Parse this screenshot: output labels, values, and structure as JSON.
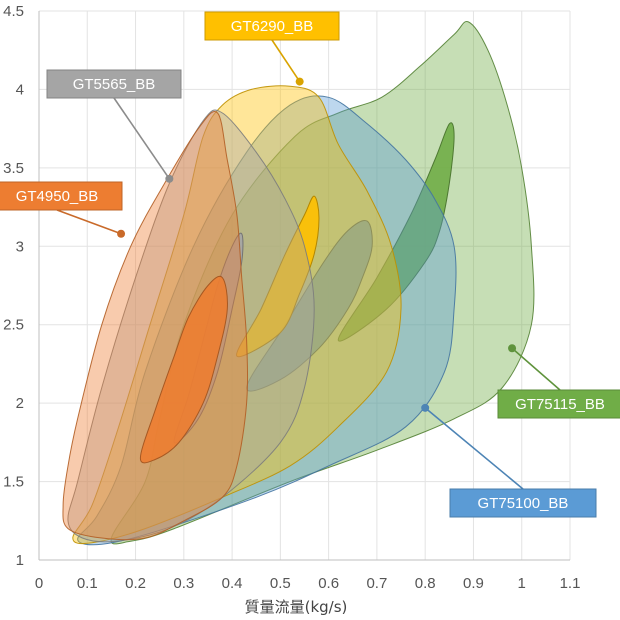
{
  "chart_data": {
    "type": "area",
    "xlabel": "質量流量(kg/s)",
    "ylabel": "",
    "xlim": [
      0,
      1.1
    ],
    "ylim": [
      1,
      4.5
    ],
    "x_ticks": [
      0,
      0.1,
      0.2,
      0.3,
      0.4,
      0.5,
      0.6,
      0.7,
      0.8,
      0.9,
      1,
      1.1
    ],
    "y_ticks": [
      1,
      1.5,
      2,
      2.5,
      3,
      3.5,
      4,
      4.5
    ],
    "x_tick_labels": [
      "0",
      "0.1",
      "0.2",
      "0.3",
      "0.4",
      "0.5",
      "0.6",
      "0.7",
      "0.8",
      "0.9",
      "1",
      "1.1"
    ],
    "y_tick_labels": [
      "1",
      "1.5",
      "2",
      "2.5",
      "3",
      "3.5",
      "4",
      "4.5"
    ],
    "grid": true,
    "series": [
      {
        "name": "GT75115_BB",
        "color": "#70ad47",
        "outer": [
          [
            0.15,
            1.14
          ],
          [
            0.19,
            1.12
          ],
          [
            0.28,
            1.2
          ],
          [
            0.52,
            1.5
          ],
          [
            0.7,
            1.7
          ],
          [
            0.86,
            1.9
          ],
          [
            0.96,
            2.1
          ],
          [
            1.02,
            2.5
          ],
          [
            1.02,
            3.0
          ],
          [
            1.0,
            3.5
          ],
          [
            0.97,
            3.9
          ],
          [
            0.93,
            4.25
          ],
          [
            0.89,
            4.43
          ],
          [
            0.86,
            4.35
          ],
          [
            0.79,
            4.15
          ],
          [
            0.71,
            3.95
          ],
          [
            0.62,
            3.85
          ],
          [
            0.53,
            3.7
          ],
          [
            0.4,
            3.2
          ],
          [
            0.3,
            2.5
          ],
          [
            0.25,
            1.9
          ],
          [
            0.22,
            1.5
          ]
        ],
        "core": [
          [
            0.62,
            2.4
          ],
          [
            0.7,
            2.8
          ],
          [
            0.77,
            3.2
          ],
          [
            0.82,
            3.55
          ],
          [
            0.85,
            3.78
          ],
          [
            0.86,
            3.7
          ],
          [
            0.85,
            3.4
          ],
          [
            0.83,
            3.1
          ],
          [
            0.8,
            2.9
          ],
          [
            0.72,
            2.6
          ]
        ],
        "label_point": [
          0.98,
          2.35
        ]
      },
      {
        "name": "GT75100_BB",
        "color": "#5b9bd5",
        "outer": [
          [
            0.08,
            1.13
          ],
          [
            0.13,
            1.1
          ],
          [
            0.24,
            1.18
          ],
          [
            0.45,
            1.4
          ],
          [
            0.6,
            1.6
          ],
          [
            0.76,
            1.85
          ],
          [
            0.84,
            2.2
          ],
          [
            0.86,
            2.6
          ],
          [
            0.86,
            3.0
          ],
          [
            0.82,
            3.3
          ],
          [
            0.76,
            3.55
          ],
          [
            0.68,
            3.78
          ],
          [
            0.6,
            3.95
          ],
          [
            0.52,
            3.9
          ],
          [
            0.43,
            3.6
          ],
          [
            0.32,
            3.0
          ],
          [
            0.22,
            2.2
          ],
          [
            0.17,
            1.6
          ],
          [
            0.12,
            1.28
          ]
        ],
        "core": [
          [
            0.43,
            2.1
          ],
          [
            0.51,
            2.5
          ],
          [
            0.59,
            2.9
          ],
          [
            0.64,
            3.1
          ],
          [
            0.68,
            3.16
          ],
          [
            0.69,
            3.0
          ],
          [
            0.67,
            2.8
          ],
          [
            0.64,
            2.6
          ],
          [
            0.58,
            2.35
          ],
          [
            0.5,
            2.15
          ]
        ],
        "label_point": [
          0.8,
          1.97
        ]
      },
      {
        "name": "GT6290_BB",
        "color": "#ffc000",
        "outer": [
          [
            0.07,
            1.14
          ],
          [
            0.11,
            1.11
          ],
          [
            0.22,
            1.2
          ],
          [
            0.38,
            1.4
          ],
          [
            0.52,
            1.6
          ],
          [
            0.62,
            1.85
          ],
          [
            0.72,
            2.2
          ],
          [
            0.75,
            2.6
          ],
          [
            0.73,
            3.0
          ],
          [
            0.68,
            3.35
          ],
          [
            0.62,
            3.65
          ],
          [
            0.58,
            3.95
          ],
          [
            0.52,
            4.02
          ],
          [
            0.44,
            4.0
          ],
          [
            0.38,
            3.9
          ],
          [
            0.34,
            3.7
          ],
          [
            0.3,
            3.2
          ],
          [
            0.23,
            2.5
          ],
          [
            0.16,
            1.8
          ],
          [
            0.11,
            1.35
          ]
        ],
        "core": [
          [
            0.41,
            2.3
          ],
          [
            0.46,
            2.6
          ],
          [
            0.51,
            2.95
          ],
          [
            0.55,
            3.2
          ],
          [
            0.57,
            3.32
          ],
          [
            0.58,
            3.18
          ],
          [
            0.57,
            2.95
          ],
          [
            0.54,
            2.7
          ],
          [
            0.5,
            2.45
          ]
        ],
        "label_point": [
          0.54,
          4.05
        ]
      },
      {
        "name": "GT5565_BB",
        "color": "#a5a5a5",
        "outer": [
          [
            0.06,
            1.25
          ],
          [
            0.09,
            1.14
          ],
          [
            0.16,
            1.12
          ],
          [
            0.27,
            1.2
          ],
          [
            0.38,
            1.4
          ],
          [
            0.5,
            1.75
          ],
          [
            0.55,
            2.1
          ],
          [
            0.57,
            2.6
          ],
          [
            0.55,
            3.0
          ],
          [
            0.51,
            3.3
          ],
          [
            0.45,
            3.6
          ],
          [
            0.38,
            3.85
          ],
          [
            0.34,
            3.8
          ],
          [
            0.27,
            3.4
          ],
          [
            0.2,
            2.8
          ],
          [
            0.13,
            2.1
          ],
          [
            0.08,
            1.5
          ]
        ],
        "core": [
          [
            0.28,
            1.75
          ],
          [
            0.31,
            2.05
          ],
          [
            0.34,
            2.4
          ],
          [
            0.37,
            2.75
          ],
          [
            0.4,
            3.0
          ],
          [
            0.42,
            3.08
          ],
          [
            0.42,
            2.9
          ],
          [
            0.4,
            2.6
          ],
          [
            0.37,
            2.2
          ],
          [
            0.33,
            1.9
          ]
        ],
        "label_point": [
          0.27,
          3.43
        ]
      },
      {
        "name": "GT4950_BB",
        "color": "#ed7d31",
        "outer": [
          [
            0.05,
            1.35
          ],
          [
            0.06,
            1.2
          ],
          [
            0.13,
            1.14
          ],
          [
            0.22,
            1.14
          ],
          [
            0.3,
            1.25
          ],
          [
            0.38,
            1.4
          ],
          [
            0.41,
            1.6
          ],
          [
            0.43,
            2.0
          ],
          [
            0.43,
            2.4
          ],
          [
            0.42,
            2.8
          ],
          [
            0.41,
            3.2
          ],
          [
            0.39,
            3.55
          ],
          [
            0.37,
            3.85
          ],
          [
            0.33,
            3.75
          ],
          [
            0.26,
            3.4
          ],
          [
            0.19,
            3.0
          ],
          [
            0.13,
            2.5
          ],
          [
            0.08,
            1.9
          ],
          [
            0.06,
            1.6
          ]
        ],
        "core": [
          [
            0.21,
            1.65
          ],
          [
            0.24,
            1.95
          ],
          [
            0.28,
            2.3
          ],
          [
            0.31,
            2.55
          ],
          [
            0.35,
            2.75
          ],
          [
            0.38,
            2.8
          ],
          [
            0.39,
            2.6
          ],
          [
            0.37,
            2.3
          ],
          [
            0.34,
            2.0
          ],
          [
            0.29,
            1.75
          ],
          [
            0.24,
            1.64
          ]
        ],
        "label_point": [
          0.17,
          3.08
        ]
      }
    ],
    "callouts": [
      {
        "text": "GT6290_BB",
        "series": "GT6290_BB",
        "placement": "top"
      },
      {
        "text": "GT5565_BB",
        "series": "GT5565_BB",
        "placement": "upper-left"
      },
      {
        "text": "GT4950_BB",
        "series": "GT4950_BB",
        "placement": "left"
      },
      {
        "text": "GT75115_BB",
        "series": "GT75115_BB",
        "placement": "right"
      },
      {
        "text": "GT75100_BB",
        "series": "GT75100_BB",
        "placement": "lower-right"
      }
    ]
  }
}
